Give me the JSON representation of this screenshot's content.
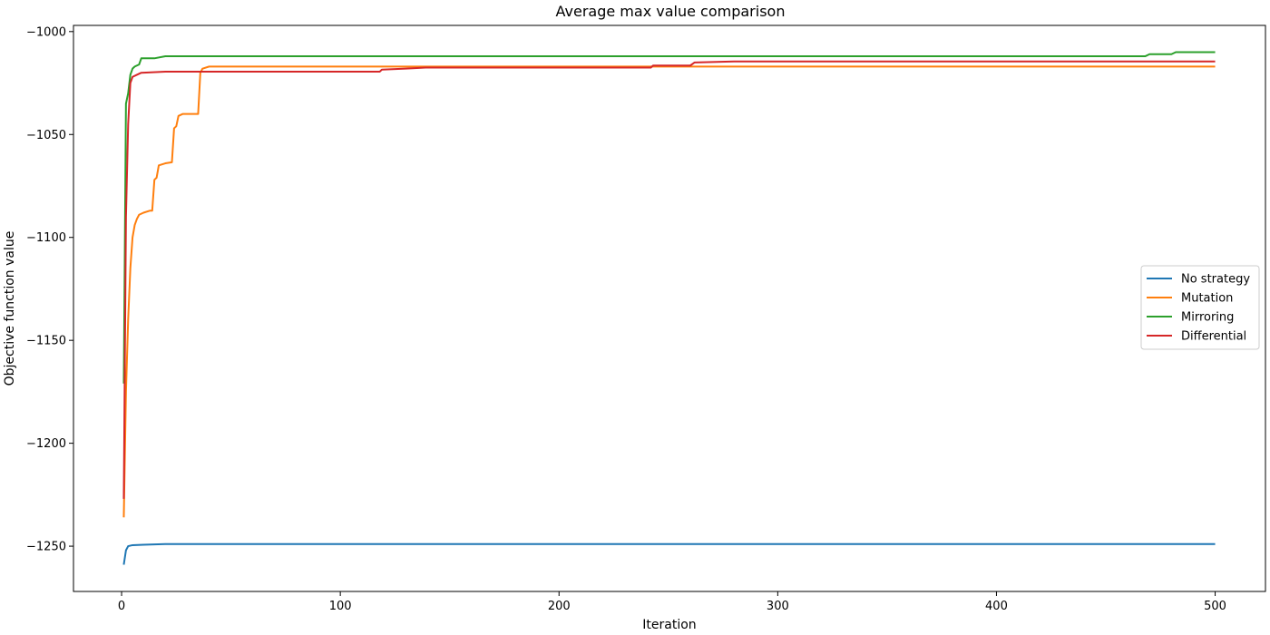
{
  "chart_data": {
    "type": "line",
    "title": "Average max value comparison",
    "xlabel": "Iteration",
    "ylabel": "Objective function value",
    "xlim": [
      -22,
      523
    ],
    "ylim": [
      -1272,
      -997
    ],
    "xticks": [
      0,
      100,
      200,
      300,
      400,
      500
    ],
    "yticks": [
      -1250,
      -1200,
      -1150,
      -1100,
      -1050,
      -1000
    ],
    "grid": false,
    "legend_position": "center-right",
    "series": [
      {
        "name": "No strategy",
        "color": "#1f77b4",
        "points": [
          [
            1,
            -1259
          ],
          [
            2,
            -1252
          ],
          [
            3,
            -1250
          ],
          [
            5,
            -1249.5
          ],
          [
            10,
            -1249.3
          ],
          [
            20,
            -1249
          ],
          [
            100,
            -1249
          ],
          [
            200,
            -1249
          ],
          [
            300,
            -1249
          ],
          [
            400,
            -1249
          ],
          [
            500,
            -1249
          ]
        ]
      },
      {
        "name": "Mutation",
        "color": "#ff7f0e",
        "points": [
          [
            1,
            -1236
          ],
          [
            2,
            -1175
          ],
          [
            3,
            -1140
          ],
          [
            4,
            -1115
          ],
          [
            5,
            -1100
          ],
          [
            6,
            -1094
          ],
          [
            7,
            -1091
          ],
          [
            8,
            -1089
          ],
          [
            10,
            -1088
          ],
          [
            13,
            -1087
          ],
          [
            14,
            -1087
          ],
          [
            15,
            -1072
          ],
          [
            16,
            -1071
          ],
          [
            17,
            -1065
          ],
          [
            20,
            -1064
          ],
          [
            23,
            -1063.5
          ],
          [
            24,
            -1047
          ],
          [
            25,
            -1046
          ],
          [
            26,
            -1041
          ],
          [
            28,
            -1040
          ],
          [
            32,
            -1040
          ],
          [
            35,
            -1040
          ],
          [
            36,
            -1020
          ],
          [
            37,
            -1018
          ],
          [
            40,
            -1017
          ],
          [
            60,
            -1017
          ],
          [
            100,
            -1017
          ],
          [
            200,
            -1017
          ],
          [
            300,
            -1017
          ],
          [
            400,
            -1017
          ],
          [
            500,
            -1017
          ]
        ]
      },
      {
        "name": "Mirroring",
        "color": "#2ca02c",
        "points": [
          [
            1,
            -1171
          ],
          [
            2,
            -1035
          ],
          [
            3,
            -1030
          ],
          [
            4,
            -1021
          ],
          [
            5,
            -1018
          ],
          [
            6,
            -1017
          ],
          [
            8,
            -1016
          ],
          [
            9,
            -1013
          ],
          [
            10,
            -1013
          ],
          [
            15,
            -1013
          ],
          [
            20,
            -1012
          ],
          [
            22,
            -1012
          ],
          [
            50,
            -1012
          ],
          [
            100,
            -1012
          ],
          [
            200,
            -1012
          ],
          [
            300,
            -1012
          ],
          [
            400,
            -1012
          ],
          [
            468,
            -1012
          ],
          [
            470,
            -1011
          ],
          [
            480,
            -1011
          ],
          [
            482,
            -1010
          ],
          [
            490,
            -1010
          ],
          [
            500,
            -1010
          ]
        ]
      },
      {
        "name": "Differential",
        "color": "#d62728",
        "points": [
          [
            1,
            -1227
          ],
          [
            2,
            -1090
          ],
          [
            3,
            -1045
          ],
          [
            4,
            -1025
          ],
          [
            5,
            -1022
          ],
          [
            7,
            -1021
          ],
          [
            9,
            -1020
          ],
          [
            20,
            -1019.5
          ],
          [
            50,
            -1019.5
          ],
          [
            118,
            -1019.5
          ],
          [
            119,
            -1018.5
          ],
          [
            130,
            -1018
          ],
          [
            139,
            -1017.5
          ],
          [
            200,
            -1017.5
          ],
          [
            242,
            -1017.5
          ],
          [
            243,
            -1016.5
          ],
          [
            260,
            -1016.5
          ],
          [
            262,
            -1015
          ],
          [
            280,
            -1014.5
          ],
          [
            400,
            -1014.5
          ],
          [
            500,
            -1014.5
          ]
        ]
      }
    ]
  }
}
